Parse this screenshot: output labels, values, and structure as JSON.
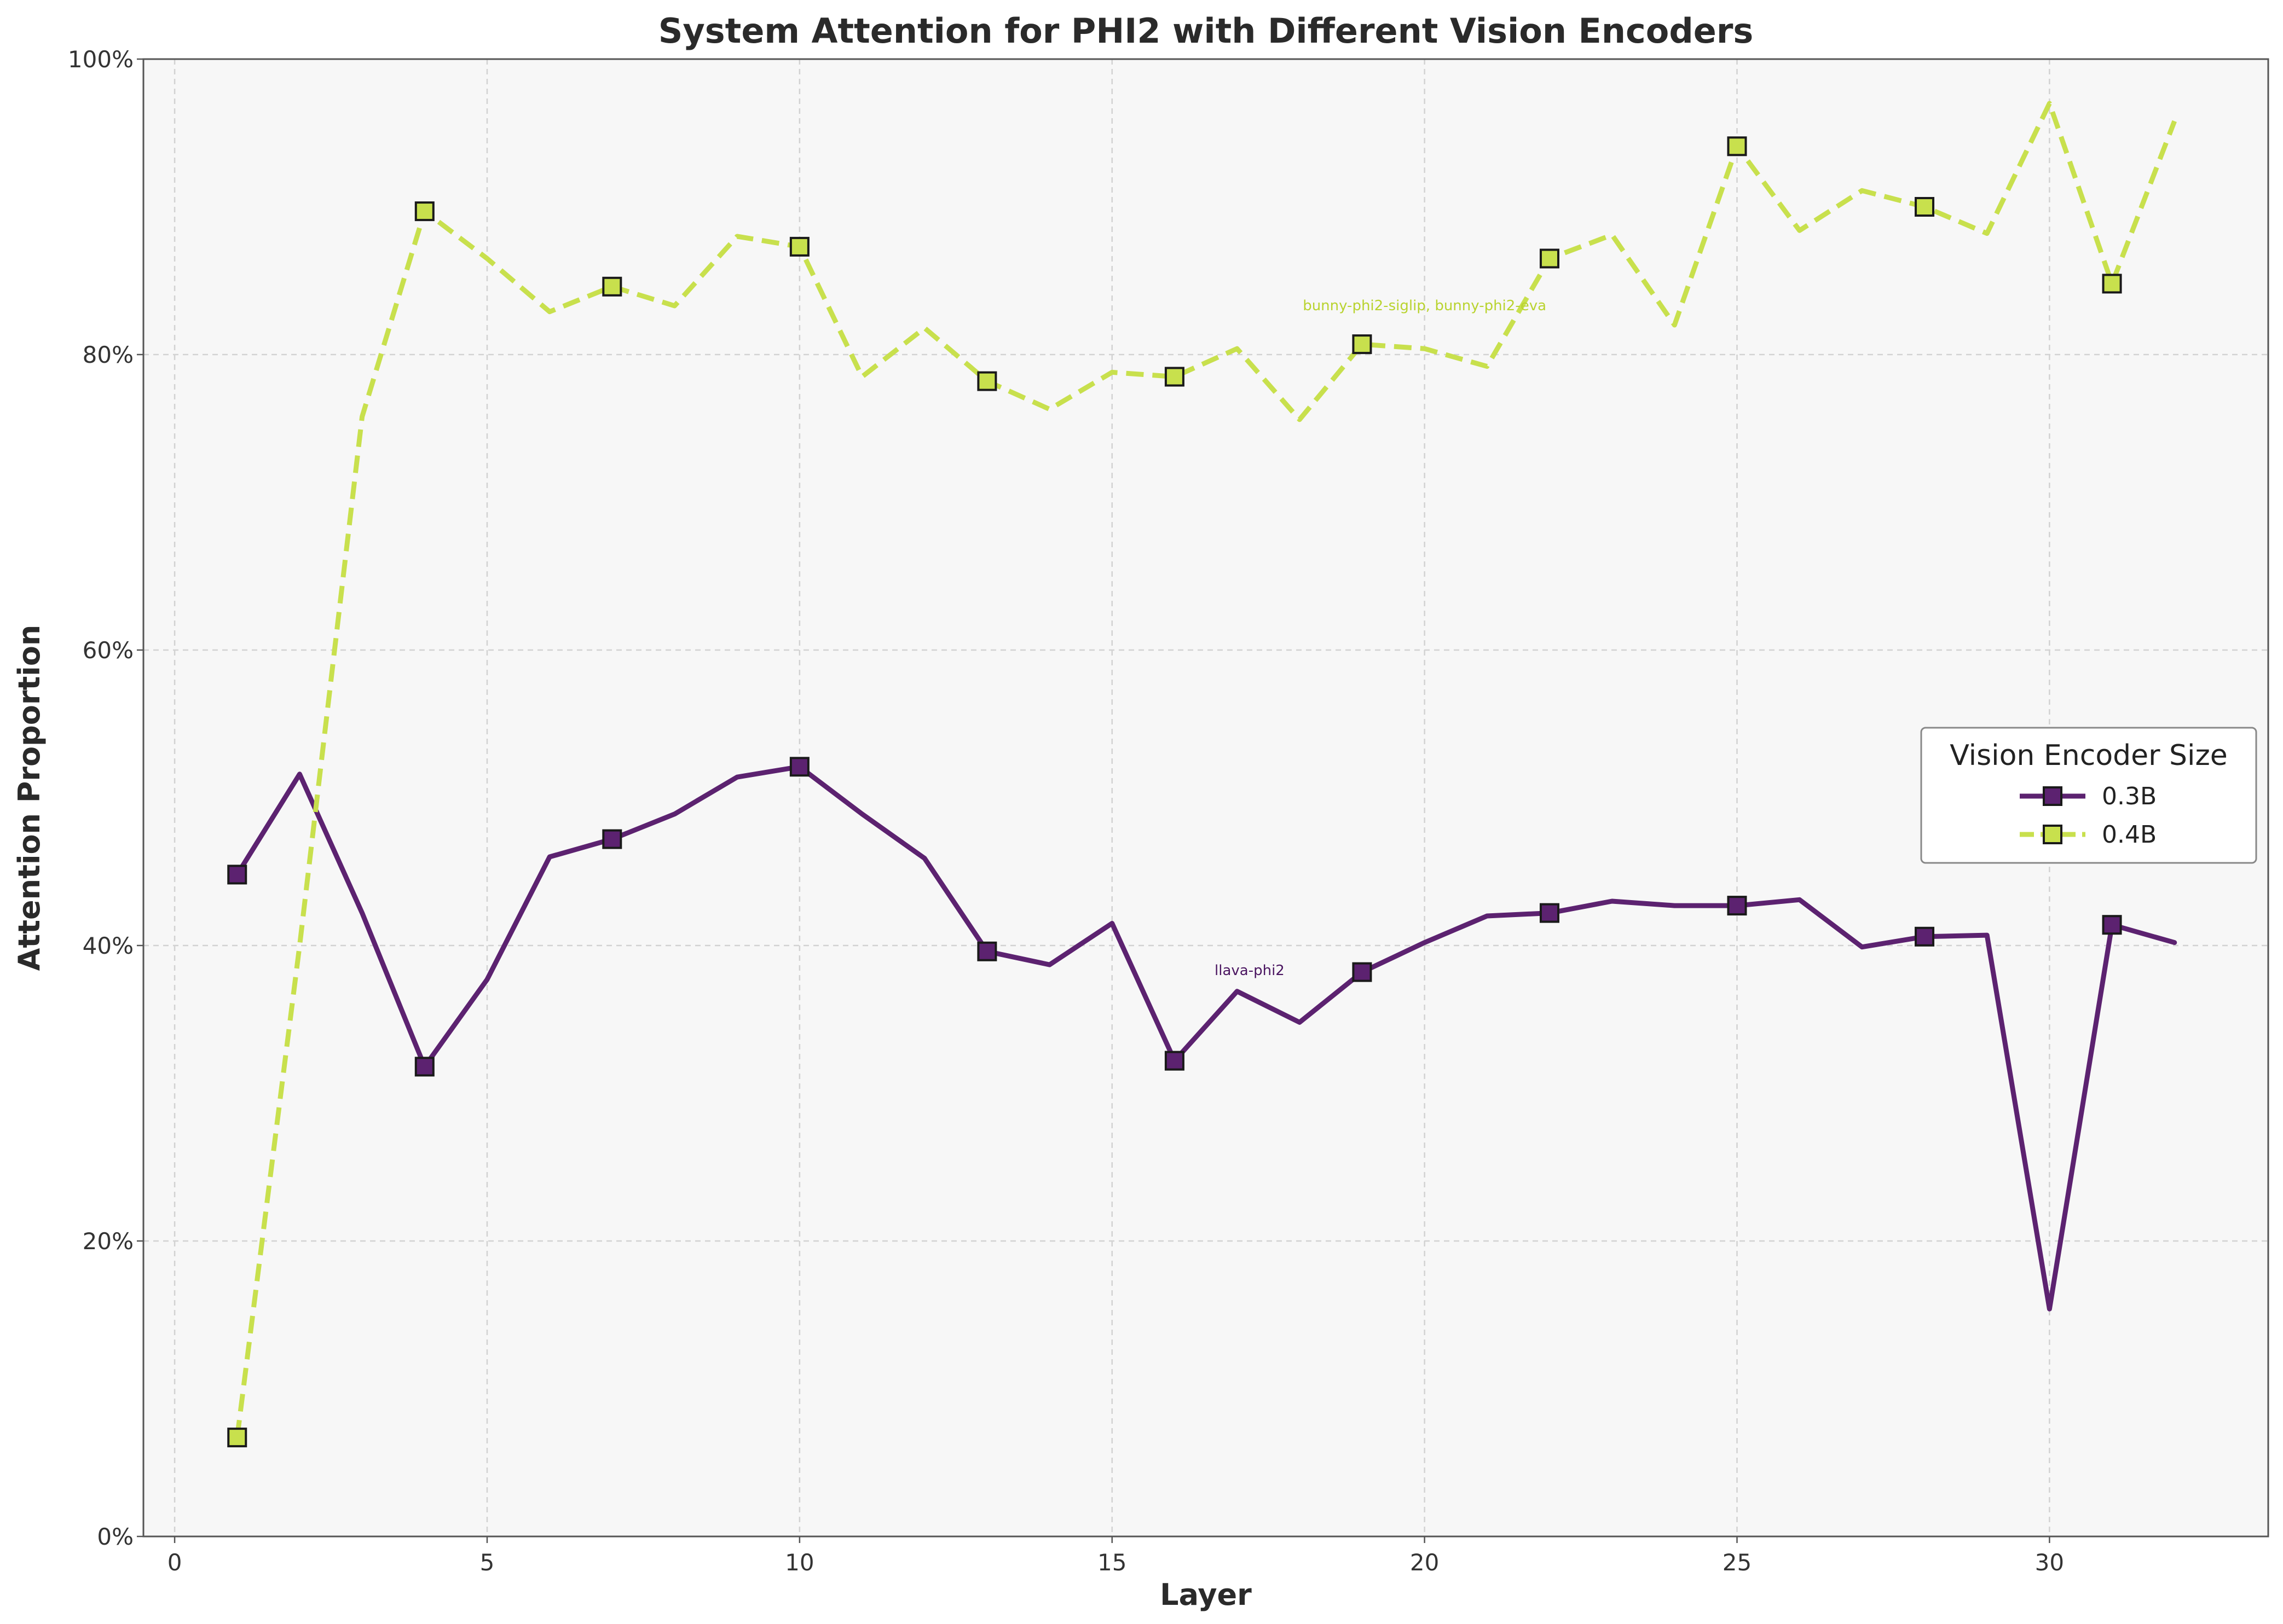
{
  "chart_data": {
    "type": "line",
    "title": "System Attention for PHI2 with Different Vision Encoders",
    "xlabel": "Layer",
    "ylabel": "Attention Proportion",
    "xlim": [
      -0.5,
      33.5
    ],
    "ylim": [
      0,
      100
    ],
    "xticks": [
      0,
      5,
      10,
      15,
      20,
      25,
      30
    ],
    "yticks": [
      0,
      20,
      40,
      60,
      80,
      100
    ],
    "ytick_labels": [
      "0%",
      "20%",
      "40%",
      "60%",
      "80%",
      "100%"
    ],
    "grid": true,
    "legend": {
      "title": "Vision Encoder Size",
      "placement": "center-right"
    },
    "x": [
      1,
      2,
      3,
      4,
      5,
      6,
      7,
      8,
      9,
      10,
      11,
      12,
      13,
      14,
      15,
      16,
      17,
      18,
      19,
      20,
      21,
      22,
      23,
      24,
      25,
      26,
      27,
      28,
      29,
      30,
      31,
      32
    ],
    "marker_every": 3,
    "series": [
      {
        "name": "0.3B",
        "color": "#5c2270",
        "line_style": "solid",
        "annotation": "llava-phi2",
        "annotation_at": [
          17.2,
          38
        ],
        "values": [
          44.8,
          51.6,
          42.2,
          31.8,
          37.7,
          46.0,
          47.2,
          48.9,
          51.4,
          52.1,
          48.9,
          45.9,
          39.6,
          38.7,
          41.5,
          32.2,
          36.9,
          34.8,
          38.2,
          40.2,
          42.0,
          42.2,
          43.0,
          42.7,
          42.7,
          43.1,
          39.9,
          40.6,
          40.7,
          15.4,
          41.4,
          40.2
        ]
      },
      {
        "name": "0.4B",
        "color": "#c8e04d",
        "line_style": "dashed",
        "annotation": "bunny-phi2-siglip, bunny-phi2-eva",
        "annotation_at": [
          20,
          83
        ],
        "values": [
          6.7,
          40.0,
          75.8,
          89.7,
          86.5,
          82.9,
          84.6,
          83.3,
          88.0,
          87.3,
          78.5,
          81.8,
          78.2,
          76.3,
          78.8,
          78.5,
          80.4,
          75.6,
          80.7,
          80.4,
          79.2,
          86.5,
          88.1,
          82.0,
          94.1,
          88.4,
          91.1,
          90.0,
          88.2,
          97.0,
          84.8,
          95.8
        ]
      }
    ]
  }
}
